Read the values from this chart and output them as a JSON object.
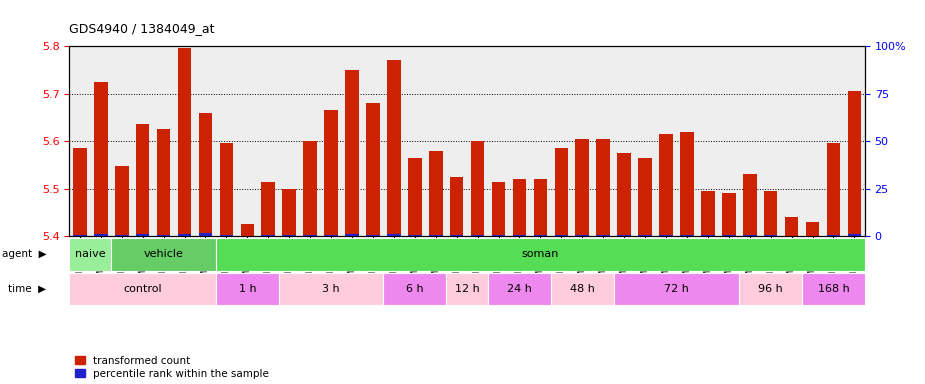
{
  "title": "GDS4940 / 1384049_at",
  "samples": [
    "GSM338857",
    "GSM338858",
    "GSM338859",
    "GSM338862",
    "GSM338864",
    "GSM338877",
    "GSM338880",
    "GSM338860",
    "GSM338861",
    "GSM338863",
    "GSM338865",
    "GSM338866",
    "GSM338867",
    "GSM338868",
    "GSM338869",
    "GSM338870",
    "GSM338871",
    "GSM338872",
    "GSM338873",
    "GSM338874",
    "GSM338875",
    "GSM338876",
    "GSM338878",
    "GSM338879",
    "GSM338881",
    "GSM338882",
    "GSM338883",
    "GSM338884",
    "GSM338885",
    "GSM338886",
    "GSM338887",
    "GSM338888",
    "GSM338889",
    "GSM338890",
    "GSM338891",
    "GSM338892",
    "GSM338893",
    "GSM338894"
  ],
  "red_values": [
    5.585,
    5.725,
    5.548,
    5.635,
    5.625,
    5.795,
    5.66,
    5.595,
    5.425,
    5.515,
    5.5,
    5.6,
    5.665,
    5.75,
    5.68,
    5.77,
    5.565,
    5.58,
    5.525,
    5.6,
    5.515,
    5.52,
    5.52,
    5.585,
    5.605,
    5.605,
    5.575,
    5.565,
    5.615,
    5.62,
    5.495,
    5.49,
    5.53,
    5.495,
    5.44,
    5.43,
    5.595,
    5.705
  ],
  "blue_values": [
    8,
    12,
    5,
    10,
    8,
    12,
    15,
    6,
    3,
    5,
    4,
    8,
    7,
    9,
    8,
    10,
    6,
    7,
    6,
    8,
    5,
    5,
    5,
    7,
    8,
    8,
    6,
    5,
    7,
    8,
    4,
    4,
    5,
    4,
    3,
    3,
    7,
    10
  ],
  "ylim_left": [
    5.4,
    5.8
  ],
  "ylim_right": [
    0,
    100
  ],
  "yticks_left": [
    5.4,
    5.5,
    5.6,
    5.7,
    5.8
  ],
  "yticks_right": [
    0,
    25,
    50,
    75,
    100
  ],
  "ytick_labels_right": [
    "0",
    "25",
    "50",
    "75",
    "100%"
  ],
  "agent_groups": [
    {
      "label": "naive",
      "start": 0,
      "end": 2,
      "color": "#99EE99"
    },
    {
      "label": "vehicle",
      "start": 2,
      "end": 7,
      "color": "#66CC66"
    },
    {
      "label": "soman",
      "start": 7,
      "end": 38,
      "color": "#55DD55"
    }
  ],
  "time_groups": [
    {
      "label": "control",
      "start": 0,
      "end": 7,
      "color": "#FFCCDD"
    },
    {
      "label": "1 h",
      "start": 7,
      "end": 10,
      "color": "#EE88EE"
    },
    {
      "label": "3 h",
      "start": 10,
      "end": 15,
      "color": "#FFCCDD"
    },
    {
      "label": "6 h",
      "start": 15,
      "end": 18,
      "color": "#EE88EE"
    },
    {
      "label": "12 h",
      "start": 18,
      "end": 20,
      "color": "#FFCCDD"
    },
    {
      "label": "24 h",
      "start": 20,
      "end": 23,
      "color": "#EE88EE"
    },
    {
      "label": "48 h",
      "start": 23,
      "end": 26,
      "color": "#FFCCDD"
    },
    {
      "label": "72 h",
      "start": 26,
      "end": 32,
      "color": "#EE88EE"
    },
    {
      "label": "96 h",
      "start": 32,
      "end": 35,
      "color": "#FFCCDD"
    },
    {
      "label": "168 h",
      "start": 35,
      "end": 38,
      "color": "#EE88EE"
    }
  ],
  "bar_width": 0.65,
  "red_color": "#CC2200",
  "blue_color": "#2222CC",
  "bg_color": "#EEEEEE"
}
